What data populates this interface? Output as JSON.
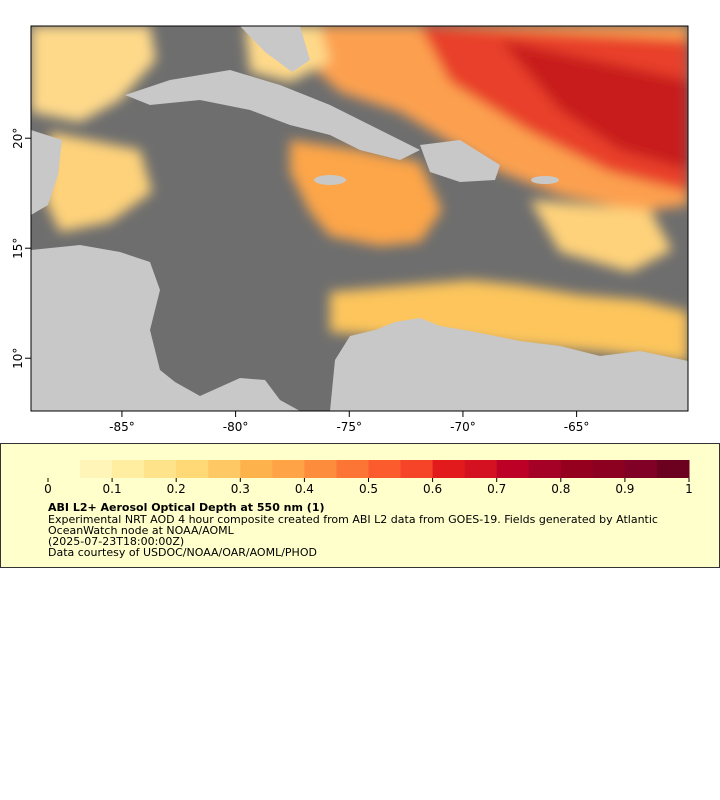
{
  "map": {
    "lonlim": [
      -89,
      -60.1
    ],
    "latlim": [
      7.6,
      25.1
    ],
    "lon_ticks": [
      {
        "value": -85,
        "label": "-85°"
      },
      {
        "value": -80,
        "label": "-80°"
      },
      {
        "value": -75,
        "label": "-75°"
      },
      {
        "value": -70,
        "label": "-70°"
      },
      {
        "value": -65,
        "label": "-65°"
      }
    ],
    "lat_ticks": [
      {
        "value": 10,
        "label": "10°"
      },
      {
        "value": 15,
        "label": "15°"
      },
      {
        "value": 20,
        "label": "20°"
      }
    ],
    "ocean_color": "#6e6e6e",
    "land_color": "#c8c8c8"
  },
  "legend": {
    "title": "ABI L2+ Aerosol Optical Depth at 550 nm (1)",
    "description": "Experimental NRT AOD 4 hour composite created from ABI L2 data from GOES-19. Fields generated by Atlantic OceanWatch node at NOAA/AOML",
    "time": "(2025-07-23T18:00:00Z)",
    "credit": "Data courtesy of USDOC/NOAA/OAR/AOML/PHOD",
    "colorbar": {
      "lim": [
        0,
        1
      ],
      "ticks": [
        0,
        0.1,
        0.2,
        0.3,
        0.4,
        0.5,
        0.6,
        0.7,
        0.8,
        0.9,
        1
      ],
      "colors": [
        "#ffffcc",
        "#fff5b8",
        "#ffeda0",
        "#fee38b",
        "#fed976",
        "#fec965",
        "#feb24c",
        "#fea446",
        "#fd8d3c",
        "#fd7535",
        "#fc5b2e",
        "#f64429",
        "#e31a1c",
        "#d31121",
        "#bd0026",
        "#a50026",
        "#96001f",
        "#8c0020",
        "#800026",
        "#6b001f"
      ]
    }
  }
}
